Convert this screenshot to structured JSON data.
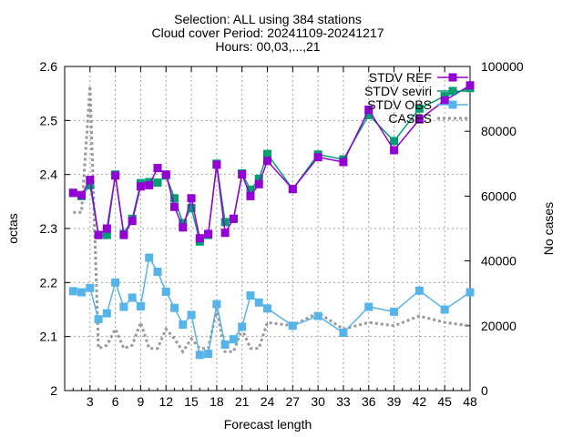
{
  "chart_data": {
    "type": "line",
    "title_lines": [
      "Selection: ALL using   384 stations",
      "Cloud cover   Period: 20241109-20241217",
      "Hours: 00,03,...,21"
    ],
    "xlabel": "Forecast length",
    "ylabel": "octas",
    "y2label": "No cases",
    "x_ticks": [
      3,
      6,
      9,
      12,
      15,
      18,
      21,
      24,
      27,
      30,
      33,
      36,
      39,
      42,
      45,
      48
    ],
    "y_ticks": [
      "2",
      "2.1",
      "2.2",
      "2.3",
      "2.4",
      "2.5",
      "2.6"
    ],
    "y2_ticks": [
      "0",
      "20000",
      "40000",
      "60000",
      "80000",
      "100000"
    ],
    "xlim": [
      0,
      48
    ],
    "ylim": [
      2.0,
      2.6
    ],
    "y2lim": [
      0,
      100000
    ],
    "grid": true,
    "legend_position": "top-right",
    "x": [
      1,
      2,
      3,
      4,
      5,
      6,
      7,
      8,
      9,
      10,
      11,
      12,
      13,
      14,
      15,
      16,
      17,
      18,
      19,
      20,
      21,
      22,
      23,
      24,
      27,
      30,
      33,
      36,
      39,
      42,
      45,
      48
    ],
    "series": [
      {
        "name": "STDV REF",
        "color": "#9400d3",
        "marker": "square",
        "axis": "y",
        "values": [
          2.366,
          2.362,
          2.39,
          2.288,
          2.3,
          2.398,
          2.288,
          2.314,
          2.378,
          2.38,
          2.412,
          2.4,
          2.34,
          2.302,
          2.356,
          2.282,
          2.29,
          2.418,
          2.292,
          2.318,
          2.4,
          2.36,
          2.382,
          2.425,
          2.373,
          2.432,
          2.423,
          2.52,
          2.445,
          2.502,
          2.537,
          2.565
        ]
      },
      {
        "name": "STDV seviri",
        "color": "#009e73",
        "marker": "square",
        "axis": "y",
        "values": [
          2.366,
          2.36,
          2.38,
          2.288,
          2.288,
          2.4,
          2.29,
          2.318,
          2.384,
          2.386,
          2.385,
          2.398,
          2.356,
          2.31,
          2.338,
          2.276,
          2.288,
          2.42,
          2.312,
          2.318,
          2.402,
          2.372,
          2.392,
          2.438,
          2.373,
          2.437,
          2.428,
          2.51,
          2.462,
          2.522,
          2.545,
          2.56
        ]
      },
      {
        "name": "STDV OBS",
        "color": "#56b4e9",
        "marker": "square",
        "axis": "y",
        "values": [
          2.184,
          2.182,
          2.19,
          2.132,
          2.143,
          2.2,
          2.155,
          2.172,
          2.156,
          2.246,
          2.22,
          2.183,
          2.153,
          2.122,
          2.14,
          2.066,
          2.068,
          2.16,
          2.085,
          2.095,
          2.118,
          2.176,
          2.163,
          2.152,
          2.12,
          2.138,
          2.107,
          2.155,
          2.146,
          2.185,
          2.15,
          2.182
        ]
      },
      {
        "name": "CASES",
        "color": "#999999",
        "dashed": true,
        "axis": "y2",
        "values": [
          55000,
          55000,
          94000,
          13000,
          14000,
          19000,
          13000,
          14000,
          21000,
          13000,
          13000,
          19000,
          16000,
          12000,
          16000,
          13000,
          13000,
          25000,
          12000,
          12000,
          19000,
          13000,
          13000,
          21000,
          20000,
          24000,
          19000,
          21000,
          20000,
          23000,
          21000,
          20000
        ]
      }
    ]
  }
}
